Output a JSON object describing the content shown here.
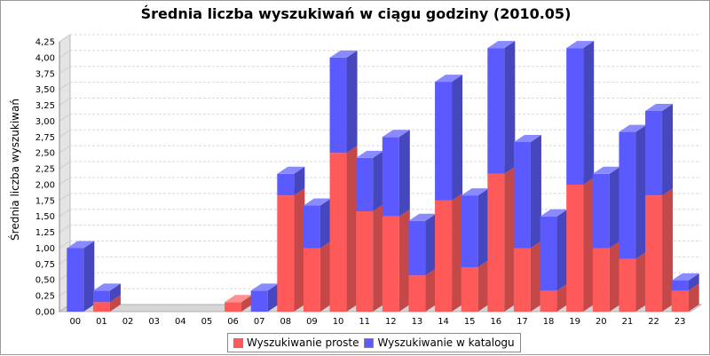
{
  "colors": {
    "proste": "#ff5a5a",
    "katalog": "#5a5aff",
    "proste_side": "#c44848",
    "proste_top": "#ff9090",
    "katalog_side": "#4646bf",
    "katalog_top": "#8a8aff",
    "grid": "#d8d8d8"
  },
  "chart_data": {
    "type": "bar",
    "stacked": true,
    "three_d": true,
    "title": "Średnia liczba wyszukiwań w ciągu godziny (2010.05)",
    "xlabel": "",
    "ylabel": "Średnia liczba wyszukiwań",
    "ylim": [
      0,
      4.25
    ],
    "ytick_step": 0.25,
    "yticks": [
      "0,00",
      "0,25",
      "0,50",
      "0,75",
      "1,00",
      "1,25",
      "1,50",
      "1,75",
      "2,00",
      "2,25",
      "2,50",
      "2,75",
      "3,00",
      "3,25",
      "3,50",
      "3,75",
      "4,00",
      "4,25"
    ],
    "categories": [
      "00",
      "01",
      "02",
      "03",
      "04",
      "05",
      "06",
      "07",
      "08",
      "09",
      "10",
      "11",
      "12",
      "13",
      "14",
      "15",
      "16",
      "17",
      "18",
      "19",
      "20",
      "21",
      "22",
      "23"
    ],
    "series": [
      {
        "name": "Wyszukiwanie proste",
        "values": [
          0,
          0.15,
          0,
          0,
          0,
          0,
          0.15,
          0,
          1.83,
          1.0,
          2.5,
          1.58,
          1.5,
          0.57,
          1.75,
          0.7,
          2.17,
          1.0,
          0.33,
          2.0,
          1.0,
          0.83,
          1.83,
          0.33
        ]
      },
      {
        "name": "Wyszukiwanie w katalogu",
        "values": [
          1.0,
          0.18,
          0,
          0,
          0,
          0,
          0,
          0.33,
          0.34,
          0.67,
          1.5,
          0.84,
          1.25,
          0.86,
          1.87,
          1.13,
          1.98,
          1.67,
          1.17,
          2.15,
          1.17,
          2.0,
          1.33,
          0.16
        ]
      }
    ],
    "grid": true,
    "legend_position": "bottom"
  }
}
